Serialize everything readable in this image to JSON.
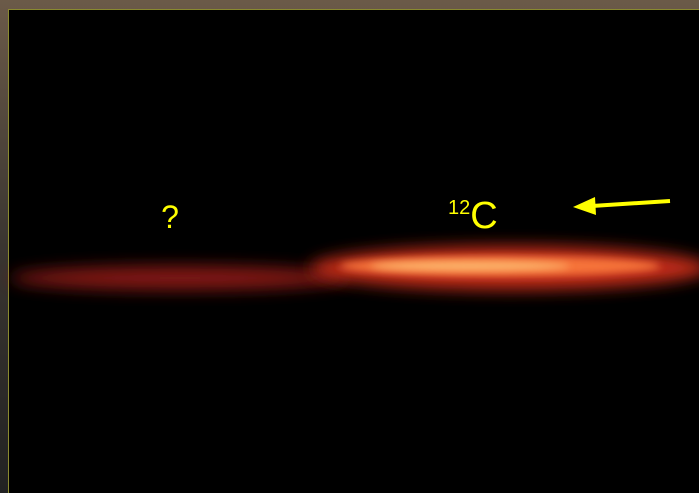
{
  "labels": {
    "unknown": "?",
    "isotope": {
      "mass": "12",
      "symbol": "C"
    }
  }
}
